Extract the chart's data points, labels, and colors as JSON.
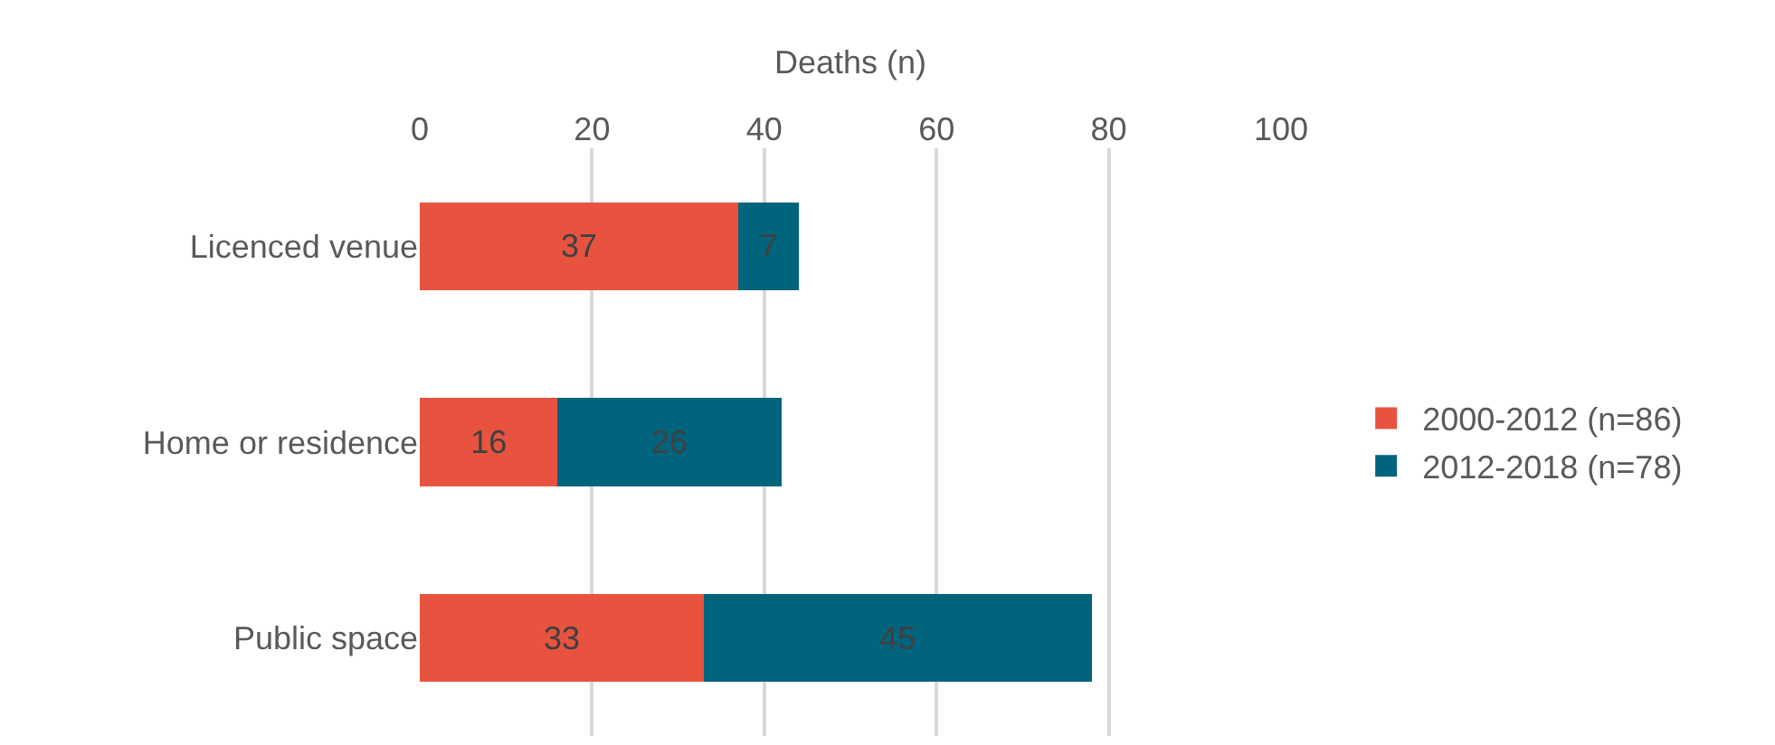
{
  "chart_data": {
    "type": "bar",
    "orientation": "horizontal",
    "stacked": true,
    "xlabel": "Deaths (n)",
    "categories": [
      "Licenced venue",
      "Home or residence",
      "Public space"
    ],
    "series": [
      {
        "name": "2000-2012 (n=86)",
        "color": "#e8533f",
        "values": [
          37,
          16,
          33
        ]
      },
      {
        "name": "2012-2018 (n=78)",
        "color": "#00647c",
        "values": [
          7,
          26,
          45
        ]
      }
    ],
    "xlim": [
      0,
      100
    ],
    "xticks": [
      0,
      20,
      40,
      60,
      80,
      100
    ],
    "grid": "x",
    "legend": "right",
    "data_labels": true
  }
}
